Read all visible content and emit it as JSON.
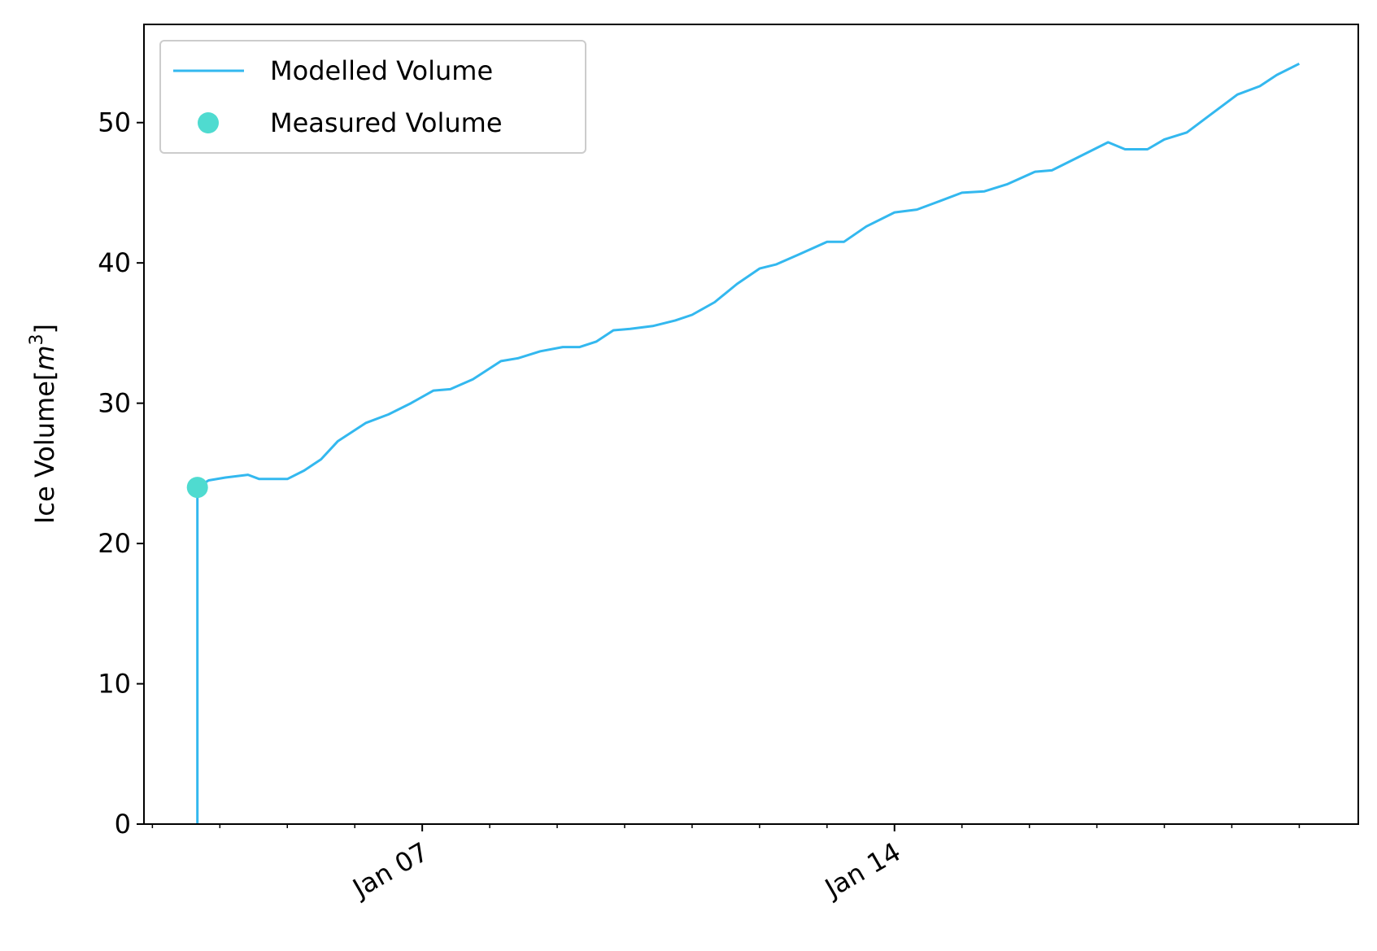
{
  "chart_data": {
    "type": "line",
    "title": "",
    "xlabel": "",
    "ylabel": "Ice Volume[",
    "ylabel_unit": "m",
    "ylabel_unit_exp": "3",
    "ylabel_close": "]",
    "x_type": "date",
    "xlim": [
      "2023-01-02T21:00",
      "2023-01-20T21:00"
    ],
    "ylim": [
      0,
      57
    ],
    "y_ticks": [
      0,
      10,
      20,
      30,
      40,
      50
    ],
    "x_major_ticks": [
      {
        "date": "2023-01-07T00:00",
        "label": "Jan 07"
      },
      {
        "date": "2023-01-14T00:00",
        "label": "Jan 14"
      }
    ],
    "x_minor_ticks": [
      "2023-01-03T00:00",
      "2023-01-04T00:00",
      "2023-01-05T00:00",
      "2023-01-06T00:00",
      "2023-01-08T00:00",
      "2023-01-09T00:00",
      "2023-01-10T00:00",
      "2023-01-11T00:00",
      "2023-01-12T00:00",
      "2023-01-13T00:00",
      "2023-01-15T00:00",
      "2023-01-16T00:00",
      "2023-01-17T00:00",
      "2023-01-18T00:00",
      "2023-01-19T00:00",
      "2023-01-20T00:00"
    ],
    "grid": false,
    "legend_position": "upper-left",
    "colors": {
      "modelled": "#33b8ef",
      "measured": "#4fdbd0"
    },
    "series": [
      {
        "name": "Modelled Volume",
        "kind": "line",
        "points": [
          [
            "2023-01-03T16:00",
            0
          ],
          [
            "2023-01-03T16:00",
            24.0
          ],
          [
            "2023-01-03T20:00",
            24.5
          ],
          [
            "2023-01-04T02:00",
            24.7
          ],
          [
            "2023-01-04T10:00",
            24.9
          ],
          [
            "2023-01-04T14:00",
            24.6
          ],
          [
            "2023-01-05T00:00",
            24.6
          ],
          [
            "2023-01-05T06:00",
            25.2
          ],
          [
            "2023-01-05T12:00",
            26.0
          ],
          [
            "2023-01-05T18:00",
            27.3
          ],
          [
            "2023-01-06T04:00",
            28.6
          ],
          [
            "2023-01-06T12:00",
            29.2
          ],
          [
            "2023-01-06T20:00",
            30.0
          ],
          [
            "2023-01-07T04:00",
            30.9
          ],
          [
            "2023-01-07T10:00",
            31.0
          ],
          [
            "2023-01-07T18:00",
            31.7
          ],
          [
            "2023-01-08T04:00",
            33.0
          ],
          [
            "2023-01-08T10:00",
            33.2
          ],
          [
            "2023-01-08T18:00",
            33.7
          ],
          [
            "2023-01-09T02:00",
            34.0
          ],
          [
            "2023-01-09T08:00",
            34.0
          ],
          [
            "2023-01-09T14:00",
            34.4
          ],
          [
            "2023-01-09T20:00",
            35.2
          ],
          [
            "2023-01-10T02:00",
            35.3
          ],
          [
            "2023-01-10T10:00",
            35.5
          ],
          [
            "2023-01-10T18:00",
            35.9
          ],
          [
            "2023-01-11T00:00",
            36.3
          ],
          [
            "2023-01-11T08:00",
            37.2
          ],
          [
            "2023-01-11T16:00",
            38.5
          ],
          [
            "2023-01-12T00:00",
            39.6
          ],
          [
            "2023-01-12T06:00",
            39.9
          ],
          [
            "2023-01-12T14:00",
            40.6
          ],
          [
            "2023-01-13T00:00",
            41.5
          ],
          [
            "2023-01-13T06:00",
            41.5
          ],
          [
            "2023-01-13T14:00",
            42.6
          ],
          [
            "2023-01-14T00:00",
            43.6
          ],
          [
            "2023-01-14T08:00",
            43.8
          ],
          [
            "2023-01-14T16:00",
            44.4
          ],
          [
            "2023-01-15T00:00",
            45.0
          ],
          [
            "2023-01-15T08:00",
            45.1
          ],
          [
            "2023-01-15T16:00",
            45.6
          ],
          [
            "2023-01-16T02:00",
            46.5
          ],
          [
            "2023-01-16T08:00",
            46.6
          ],
          [
            "2023-01-16T16:00",
            47.4
          ],
          [
            "2023-01-17T04:00",
            48.6
          ],
          [
            "2023-01-17T10:00",
            48.1
          ],
          [
            "2023-01-17T18:00",
            48.1
          ],
          [
            "2023-01-18T00:00",
            48.8
          ],
          [
            "2023-01-18T08:00",
            49.3
          ],
          [
            "2023-01-18T16:00",
            50.5
          ],
          [
            "2023-01-19T02:00",
            52.0
          ],
          [
            "2023-01-19T10:00",
            52.6
          ],
          [
            "2023-01-19T16:00",
            53.4
          ],
          [
            "2023-01-20T00:00",
            54.2
          ]
        ]
      },
      {
        "name": "Measured Volume",
        "kind": "scatter",
        "points": [
          [
            "2023-01-03T16:00",
            24.0
          ]
        ]
      }
    ]
  }
}
